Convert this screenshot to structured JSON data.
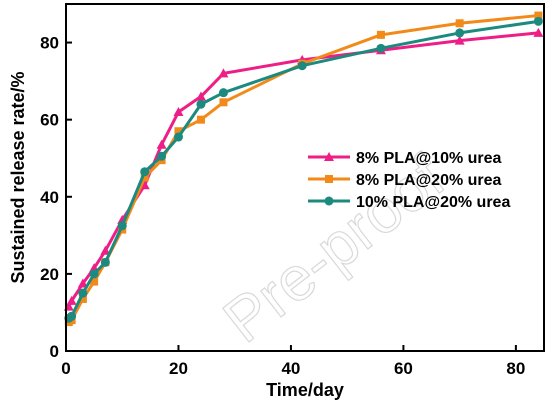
{
  "watermark": "Pre-proof",
  "chart_data": {
    "type": "line",
    "xlabel": "Time/day",
    "ylabel": "Sustained release rate/%",
    "xlim": [
      0,
      85
    ],
    "ylim": [
      0,
      90
    ],
    "xticks": [
      0,
      20,
      40,
      60,
      80
    ],
    "yticks": [
      0,
      20,
      40,
      60,
      80
    ],
    "grid": false,
    "legend_position": "center-right",
    "series": [
      {
        "name": "8% PLA@10% urea",
        "color": "#ee1e86",
        "marker": "triangle",
        "x": [
          0.5,
          1,
          3,
          5,
          7,
          10,
          14,
          17,
          20,
          24,
          28,
          42,
          56,
          70,
          84
        ],
        "y": [
          11.5,
          13,
          17.5,
          21.5,
          26,
          34,
          43,
          53.5,
          62,
          66,
          72,
          75.5,
          78,
          80.5,
          82.5
        ]
      },
      {
        "name": "8% PLA@20% urea",
        "color": "#f28a1a",
        "marker": "square",
        "x": [
          0.5,
          1,
          3,
          5,
          7,
          10,
          14,
          17,
          20,
          24,
          28,
          42,
          56,
          70,
          84
        ],
        "y": [
          7.5,
          8,
          13.5,
          18,
          23,
          31.5,
          45,
          49.5,
          57,
          60,
          64.5,
          74.5,
          82,
          85,
          87
        ]
      },
      {
        "name": "10% PLA@20% urea",
        "color": "#1c8a7e",
        "marker": "circle",
        "x": [
          0.5,
          1,
          3,
          5,
          7,
          10,
          14,
          17,
          20,
          24,
          28,
          42,
          56,
          70,
          84
        ],
        "y": [
          8.5,
          9,
          15,
          20,
          23,
          32.5,
          46.5,
          50.5,
          55.5,
          64,
          67,
          74,
          78.5,
          82.5,
          85.5
        ]
      }
    ]
  }
}
